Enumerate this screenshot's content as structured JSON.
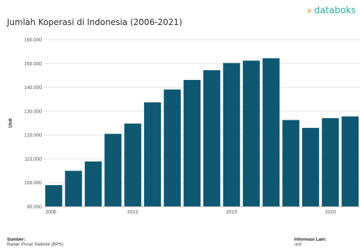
{
  "logo": {
    "text": "databoks",
    "icon": "sparkle-icon",
    "color": "#2aa7a0",
    "icon_color": "#f29d3b"
  },
  "footer": {
    "source_label": "Sumber:",
    "source_value": "Badan Pusat Statistik (BPS)",
    "info_label": "Informasi Lain:",
    "info_value": "unit"
  },
  "chart_data": {
    "type": "bar",
    "title": "Jumlah Koperasi di Indonesia (2006-2021)",
    "ylabel": "Unit",
    "xlabel": "",
    "bar_color": "#0e5872",
    "grid": true,
    "ylim": [
      90000,
      160000
    ],
    "yticks": [
      90000,
      100000,
      110000,
      120000,
      130000,
      140000,
      150000,
      160000
    ],
    "ytick_labels": [
      "90.000",
      "100.000",
      "110.000",
      "120.000",
      "130.000",
      "140.000",
      "150.000",
      "160.000"
    ],
    "xticks": [
      "2006",
      "2010",
      "2015",
      "2020"
    ],
    "categories": [
      "2006",
      "2007",
      "2008",
      "2009",
      "2010",
      "2011",
      "2012",
      "2013",
      "2014",
      "2015",
      "2016",
      "2017",
      "2018",
      "2019",
      "2020",
      "2021"
    ],
    "values": [
      99000,
      105000,
      108900,
      120500,
      124800,
      133700,
      139100,
      143100,
      147200,
      150200,
      151200,
      152200,
      126300,
      123000,
      127100,
      127800
    ]
  }
}
